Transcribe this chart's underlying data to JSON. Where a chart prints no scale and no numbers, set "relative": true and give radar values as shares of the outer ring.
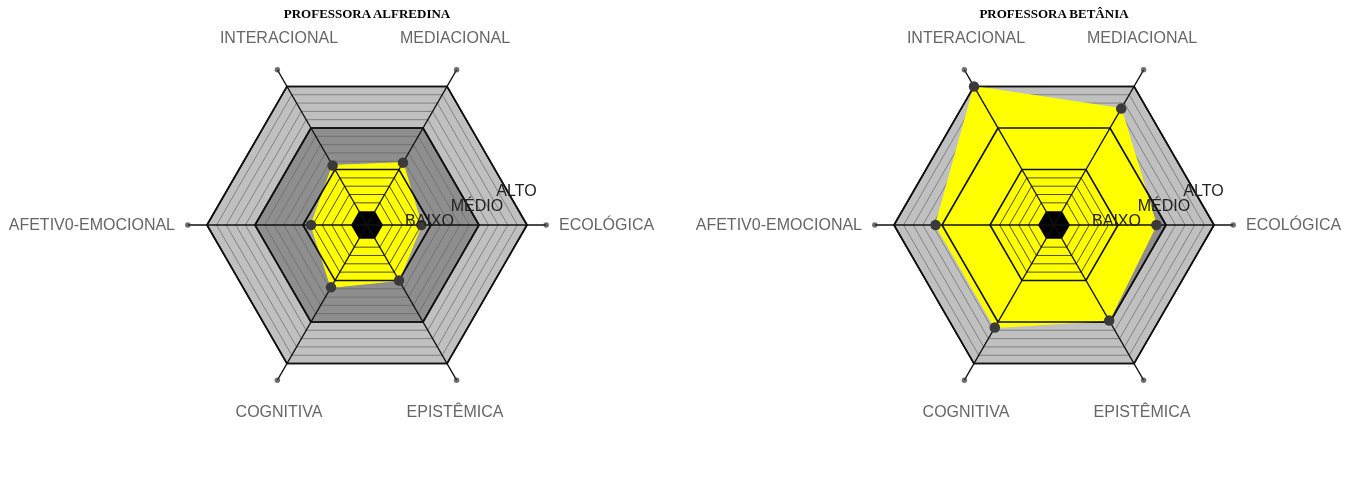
{
  "chart_data": [
    {
      "type": "radar",
      "title": "PROFESSORA ALFREDINA",
      "categories": [
        "MEDIACIONAL",
        "ECOLÓGICA",
        "EPISTÊMICA",
        "COGNITIVA",
        "AFETIV0-EMOCIONAL",
        "INTERACIONAL"
      ],
      "relative": true,
      "grid": true,
      "marker": "circle",
      "annotations": [
        "BAIXO",
        "MÉDIO",
        "ALTO"
      ],
      "series": [
        {
          "color": "#ffff00",
          "values": [
            0.45,
            0.34,
            0.4,
            0.45,
            0.35,
            0.43
          ]
        }
      ]
    },
    {
      "type": "radar",
      "title": "PROFESSORA BETÂNIA",
      "categories": [
        "MEDIACIONAL",
        "ECOLÓGICA",
        "EPISTÊMICA",
        "COGNITIVA",
        "AFETIV0-EMOCIONAL",
        "INTERACIONAL"
      ],
      "relative": true,
      "grid": true,
      "marker": "circle",
      "annotations": [
        "BAIXO",
        "MÉDIO",
        "ALTO"
      ],
      "series": [
        {
          "color": "#ffff00",
          "values": [
            0.84,
            0.64,
            0.69,
            0.74,
            0.74,
            1.0
          ]
        }
      ]
    }
  ]
}
